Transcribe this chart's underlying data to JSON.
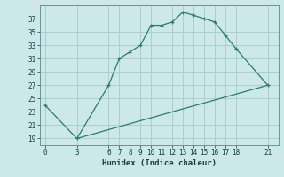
{
  "xlabel": "Humidex (Indice chaleur)",
  "background_color": "#cce8e8",
  "grid_color": "#aacece",
  "line_color": "#2e7a6a",
  "line1_x": [
    0,
    3,
    6,
    7,
    8,
    9,
    10,
    11,
    12,
    13,
    14,
    15,
    16,
    17,
    18,
    21
  ],
  "line1_y": [
    24,
    19,
    27,
    31,
    32,
    33,
    36,
    36,
    36.5,
    38,
    37.5,
    37,
    36.5,
    34.5,
    32.5,
    27
  ],
  "line2_x": [
    3,
    21
  ],
  "line2_y": [
    19,
    27
  ],
  "xticks": [
    0,
    3,
    6,
    7,
    8,
    9,
    10,
    11,
    12,
    13,
    14,
    15,
    16,
    17,
    18,
    21
  ],
  "yticks": [
    19,
    21,
    23,
    25,
    27,
    29,
    31,
    33,
    35,
    37
  ],
  "ylim": [
    18.0,
    39.0
  ],
  "xlim": [
    -0.5,
    22.0
  ],
  "figsize": [
    3.2,
    2.0
  ],
  "dpi": 100
}
